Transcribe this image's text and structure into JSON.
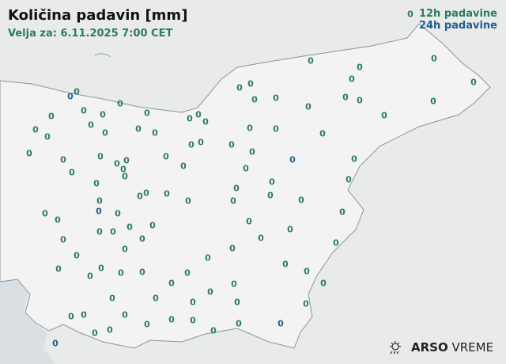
{
  "header": {
    "title": "Količina padavin [mm]",
    "valid": "Velja za: 6.11.2025 7:00 CET"
  },
  "legend": {
    "h12": "12h padavine",
    "h24": "24h padavine"
  },
  "logo": {
    "brand": "ARSO",
    "product": "VREME",
    "icon": "sun-rain-icon"
  },
  "colors": {
    "h12": "#2a7d5a",
    "h24": "#1f5f8f",
    "sea": "#d9dfe3",
    "land": "#f2f2f2",
    "border": "#8a94a0"
  },
  "stations": [
    {
      "v": "0",
      "t": "12h",
      "p": [
        519,
        18
      ]
    },
    {
      "v": "0",
      "t": "12h",
      "p": [
        393,
        77
      ]
    },
    {
      "v": "0",
      "t": "12h",
      "p": [
        549,
        74
      ]
    },
    {
      "v": "0",
      "t": "12h",
      "p": [
        455,
        85
      ]
    },
    {
      "v": "0",
      "t": "12h",
      "p": [
        303,
        111
      ]
    },
    {
      "v": "0",
      "t": "12h",
      "p": [
        317,
        106
      ]
    },
    {
      "v": "0",
      "t": "12h",
      "p": [
        445,
        100
      ]
    },
    {
      "v": "0",
      "t": "12h",
      "p": [
        599,
        104
      ]
    },
    {
      "v": "0",
      "t": "24h",
      "p": [
        89,
        122
      ]
    },
    {
      "v": "0",
      "t": "12h",
      "p": [
        97,
        116
      ]
    },
    {
      "v": "0",
      "t": "12h",
      "p": [
        152,
        131
      ]
    },
    {
      "v": "0",
      "t": "12h",
      "p": [
        322,
        126
      ]
    },
    {
      "v": "0",
      "t": "12h",
      "p": [
        349,
        124
      ]
    },
    {
      "v": "0",
      "t": "12h",
      "p": [
        437,
        123
      ]
    },
    {
      "v": "0",
      "t": "12h",
      "p": [
        455,
        127
      ]
    },
    {
      "v": "0",
      "t": "12h",
      "p": [
        548,
        128
      ]
    },
    {
      "v": "0",
      "t": "12h",
      "p": [
        390,
        135
      ]
    },
    {
      "v": "0",
      "t": "12h",
      "p": [
        106,
        140
      ]
    },
    {
      "v": "0",
      "t": "12h",
      "p": [
        65,
        147
      ]
    },
    {
      "v": "0",
      "t": "12h",
      "p": [
        130,
        145
      ]
    },
    {
      "v": "0",
      "t": "12h",
      "p": [
        186,
        143
      ]
    },
    {
      "v": "0",
      "t": "12h",
      "p": [
        240,
        150
      ]
    },
    {
      "v": "0",
      "t": "12h",
      "p": [
        251,
        145
      ]
    },
    {
      "v": "0",
      "t": "12h",
      "p": [
        260,
        154
      ]
    },
    {
      "v": "0",
      "t": "12h",
      "p": [
        486,
        146
      ]
    },
    {
      "v": "0",
      "t": "12h",
      "p": [
        45,
        164
      ]
    },
    {
      "v": "0",
      "t": "12h",
      "p": [
        115,
        158
      ]
    },
    {
      "v": "0",
      "t": "12h",
      "p": [
        175,
        163
      ]
    },
    {
      "v": "0",
      "t": "12h",
      "p": [
        316,
        162
      ]
    },
    {
      "v": "0",
      "t": "12h",
      "p": [
        349,
        163
      ]
    },
    {
      "v": "0",
      "t": "12h",
      "p": [
        408,
        169
      ]
    },
    {
      "v": "0",
      "t": "12h",
      "p": [
        60,
        173
      ]
    },
    {
      "v": "0",
      "t": "12h",
      "p": [
        133,
        168
      ]
    },
    {
      "v": "0",
      "t": "12h",
      "p": [
        196,
        168
      ]
    },
    {
      "v": "0",
      "t": "12h",
      "p": [
        242,
        183
      ]
    },
    {
      "v": "0",
      "t": "12h",
      "p": [
        254,
        180
      ]
    },
    {
      "v": "0",
      "t": "12h",
      "p": [
        293,
        183
      ]
    },
    {
      "v": "0",
      "t": "12h",
      "p": [
        37,
        194
      ]
    },
    {
      "v": "0",
      "t": "12h",
      "p": [
        127,
        198
      ]
    },
    {
      "v": "0",
      "t": "12h",
      "p": [
        319,
        192
      ]
    },
    {
      "v": "0",
      "t": "24h",
      "p": [
        370,
        202
      ]
    },
    {
      "v": "0",
      "t": "12h",
      "p": [
        448,
        201
      ]
    },
    {
      "v": "0",
      "t": "12h",
      "p": [
        80,
        202
      ]
    },
    {
      "v": "0",
      "t": "12h",
      "p": [
        210,
        198
      ]
    },
    {
      "v": "0",
      "t": "12h",
      "p": [
        148,
        207
      ]
    },
    {
      "v": "0",
      "t": "12h",
      "p": [
        160,
        203
      ]
    },
    {
      "v": "0",
      "t": "12h",
      "p": [
        232,
        210
      ]
    },
    {
      "v": "0",
      "t": "12h",
      "p": [
        156,
        214
      ]
    },
    {
      "v": "0",
      "t": "12h",
      "p": [
        311,
        213
      ]
    },
    {
      "v": "0",
      "t": "12h",
      "p": [
        91,
        218
      ]
    },
    {
      "v": "0",
      "t": "12h",
      "p": [
        158,
        223
      ]
    },
    {
      "v": "0",
      "t": "12h",
      "p": [
        441,
        227
      ]
    },
    {
      "v": "0",
      "t": "12h",
      "p": [
        122,
        232
      ]
    },
    {
      "v": "0",
      "t": "12h",
      "p": [
        344,
        230
      ]
    },
    {
      "v": "0",
      "t": "12h",
      "p": [
        185,
        244
      ]
    },
    {
      "v": "0",
      "t": "12h",
      "p": [
        177,
        248
      ]
    },
    {
      "v": "0",
      "t": "12h",
      "p": [
        211,
        245
      ]
    },
    {
      "v": "0",
      "t": "12h",
      "p": [
        299,
        238
      ]
    },
    {
      "v": "0",
      "t": "12h",
      "p": [
        342,
        247
      ]
    },
    {
      "v": "0",
      "t": "12h",
      "p": [
        126,
        254
      ]
    },
    {
      "v": "0",
      "t": "12h",
      "p": [
        238,
        254
      ]
    },
    {
      "v": "0",
      "t": "12h",
      "p": [
        381,
        253
      ]
    },
    {
      "v": "0",
      "t": "24h",
      "p": [
        125,
        267
      ]
    },
    {
      "v": "0",
      "t": "12h",
      "p": [
        57,
        270
      ]
    },
    {
      "v": "0",
      "t": "12h",
      "p": [
        149,
        270
      ]
    },
    {
      "v": "0",
      "t": "12h",
      "p": [
        295,
        254
      ]
    },
    {
      "v": "0",
      "t": "12h",
      "p": [
        433,
        268
      ]
    },
    {
      "v": "0",
      "t": "12h",
      "p": [
        73,
        278
      ]
    },
    {
      "v": "0",
      "t": "12h",
      "p": [
        193,
        285
      ]
    },
    {
      "v": "0",
      "t": "12h",
      "p": [
        315,
        280
      ]
    },
    {
      "v": "0",
      "t": "12h",
      "p": [
        126,
        293
      ]
    },
    {
      "v": "0",
      "t": "12h",
      "p": [
        143,
        293
      ]
    },
    {
      "v": "0",
      "t": "12h",
      "p": [
        164,
        287
      ]
    },
    {
      "v": "0",
      "t": "12h",
      "p": [
        367,
        290
      ]
    },
    {
      "v": "0",
      "t": "12h",
      "p": [
        80,
        303
      ]
    },
    {
      "v": "0",
      "t": "12h",
      "p": [
        180,
        302
      ]
    },
    {
      "v": "0",
      "t": "12h",
      "p": [
        330,
        301
      ]
    },
    {
      "v": "0",
      "t": "12h",
      "p": [
        425,
        307
      ]
    },
    {
      "v": "0",
      "t": "12h",
      "p": [
        294,
        314
      ]
    },
    {
      "v": "0",
      "t": "12h",
      "p": [
        263,
        326
      ]
    },
    {
      "v": "0",
      "t": "12h",
      "p": [
        158,
        315
      ]
    },
    {
      "v": "0",
      "t": "12h",
      "p": [
        97,
        323
      ]
    },
    {
      "v": "0",
      "t": "12h",
      "p": [
        361,
        334
      ]
    },
    {
      "v": "0",
      "t": "12h",
      "p": [
        74,
        340
      ]
    },
    {
      "v": "0",
      "t": "12h",
      "p": [
        128,
        339
      ]
    },
    {
      "v": "0",
      "t": "12h",
      "p": [
        153,
        345
      ]
    },
    {
      "v": "0",
      "t": "12h",
      "p": [
        180,
        344
      ]
    },
    {
      "v": "0",
      "t": "12h",
      "p": [
        237,
        345
      ]
    },
    {
      "v": "0",
      "t": "12h",
      "p": [
        388,
        343
      ]
    },
    {
      "v": "0",
      "t": "12h",
      "p": [
        114,
        349
      ]
    },
    {
      "v": "0",
      "t": "12h",
      "p": [
        217,
        358
      ]
    },
    {
      "v": "0",
      "t": "12h",
      "p": [
        266,
        369
      ]
    },
    {
      "v": "0",
      "t": "12h",
      "p": [
        296,
        359
      ]
    },
    {
      "v": "0",
      "t": "12h",
      "p": [
        409,
        358
      ]
    },
    {
      "v": "0",
      "t": "12h",
      "p": [
        142,
        377
      ]
    },
    {
      "v": "0",
      "t": "12h",
      "p": [
        197,
        377
      ]
    },
    {
      "v": "0",
      "t": "12h",
      "p": [
        244,
        382
      ]
    },
    {
      "v": "0",
      "t": "12h",
      "p": [
        300,
        382
      ]
    },
    {
      "v": "0",
      "t": "12h",
      "p": [
        387,
        384
      ]
    },
    {
      "v": "0",
      "t": "12h",
      "p": [
        90,
        400
      ]
    },
    {
      "v": "0",
      "t": "12h",
      "p": [
        106,
        398
      ]
    },
    {
      "v": "0",
      "t": "12h",
      "p": [
        158,
        398
      ]
    },
    {
      "v": "0",
      "t": "12h",
      "p": [
        186,
        410
      ]
    },
    {
      "v": "0",
      "t": "12h",
      "p": [
        217,
        404
      ]
    },
    {
      "v": "0",
      "t": "12h",
      "p": [
        244,
        405
      ]
    },
    {
      "v": "0",
      "t": "12h",
      "p": [
        302,
        409
      ]
    },
    {
      "v": "0",
      "t": "24h",
      "p": [
        355,
        409
      ]
    },
    {
      "v": "0",
      "t": "12h",
      "p": [
        139,
        417
      ]
    },
    {
      "v": "0",
      "t": "12h",
      "p": [
        120,
        421
      ]
    },
    {
      "v": "0",
      "t": "12h",
      "p": [
        270,
        418
      ]
    },
    {
      "v": "0",
      "t": "24h",
      "p": [
        70,
        434
      ]
    }
  ]
}
